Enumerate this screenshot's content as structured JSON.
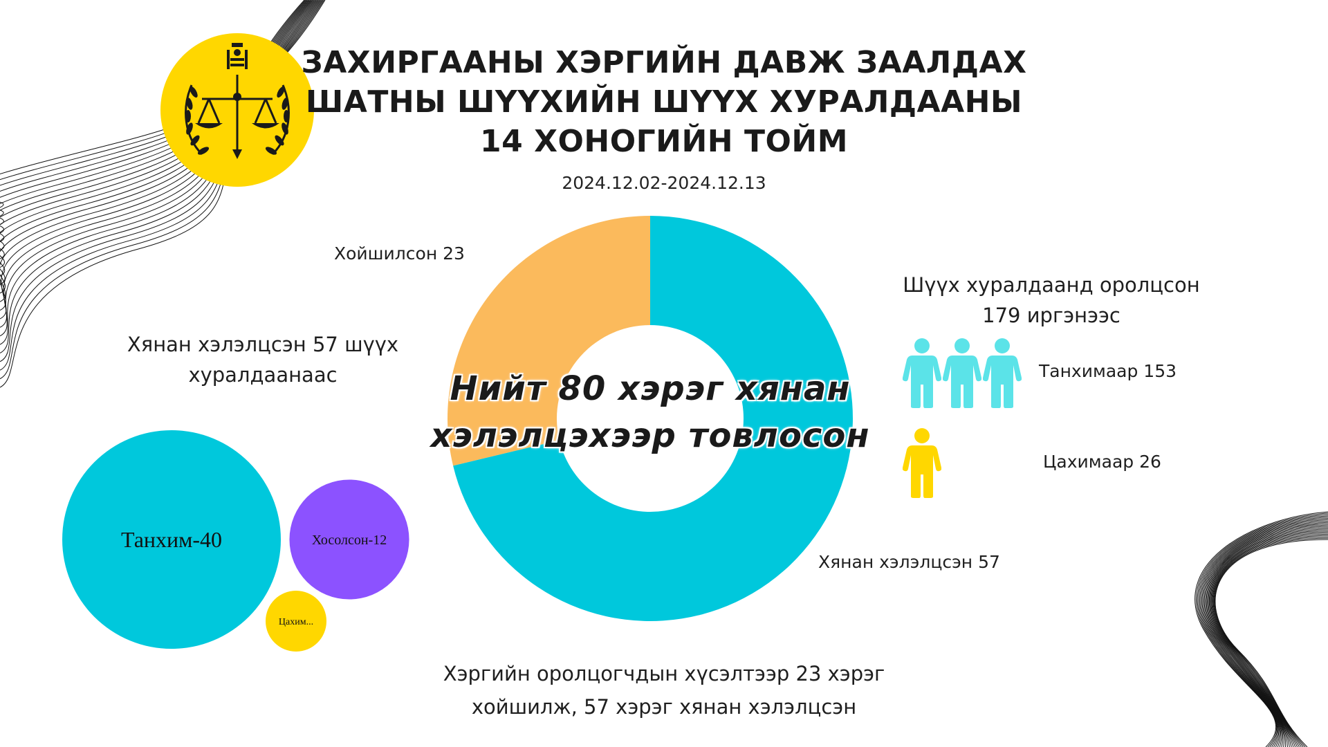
{
  "header": {
    "title_lines": [
      "ЗАХИРГААНЫ ХЭРГИЙН ДАВЖ ЗААЛДАХ",
      "ШАТНЫ ШҮҮХИЙН ШҮҮХ ХУРАЛДААНЫ",
      "14 ХОНОГИЙН ТОЙМ"
    ],
    "date_range": "2024.12.02-2024.12.13"
  },
  "colors": {
    "cyan": "#00C8DC",
    "orange": "#FBBA5C",
    "purple": "#8C52FF",
    "yellow": "#FFD700",
    "light_cyan": "#5BE3E8"
  },
  "icons": {
    "emblem": "court-emblem-icon",
    "person": "person-icon"
  },
  "donut": {
    "center_lines": [
      "Нийт 80 хэрэг хянан",
      "хэлэлцэхээр товлосон"
    ],
    "label_postponed": "Хойшилсон 23",
    "label_reviewed": "Хянан хэлэлцсэн 57"
  },
  "bubbles": {
    "heading_lines": [
      "Хянан хэлэлцсэн 57 шүүх",
      "хуралдаанаас"
    ],
    "labels": [
      "Танхим-40",
      "Хосолсон-12",
      "Цахим..."
    ]
  },
  "participants": {
    "heading_lines": [
      "Шүүх хуралдаанд оролцсон",
      "179 иргэнээс"
    ],
    "in_person_label": "Танхимаар 153",
    "online_label": "Цахимаар 26",
    "in_person_icon_count": 3,
    "online_icon_count": 1
  },
  "footer": {
    "lines": [
      "Хэргийн оролцогчдын хүсэлтээр 23 хэрэг",
      "хойшилж, 57 хэрэг хянан хэлэлцсэн"
    ]
  },
  "chart_data": [
    {
      "type": "pie",
      "variant": "donut",
      "categories": [
        "Хойшилсон",
        "Хянан хэлэлцсэн"
      ],
      "values": [
        23,
        57
      ],
      "colors": [
        "#FBBA5C",
        "#00C8DC"
      ],
      "total": 80
    },
    {
      "type": "bubble",
      "categories": [
        "Танхим",
        "Хосолсон",
        "Цахим"
      ],
      "values": [
        40,
        12,
        5
      ],
      "colors": [
        "#00C8DC",
        "#8C52FF",
        "#FFD700"
      ]
    },
    {
      "type": "pictogram",
      "categories": [
        "Танхимаар",
        "Цахимаар"
      ],
      "values": [
        153,
        26
      ],
      "colors": [
        "#5BE3E8",
        "#FFD700"
      ],
      "total": 179
    }
  ]
}
